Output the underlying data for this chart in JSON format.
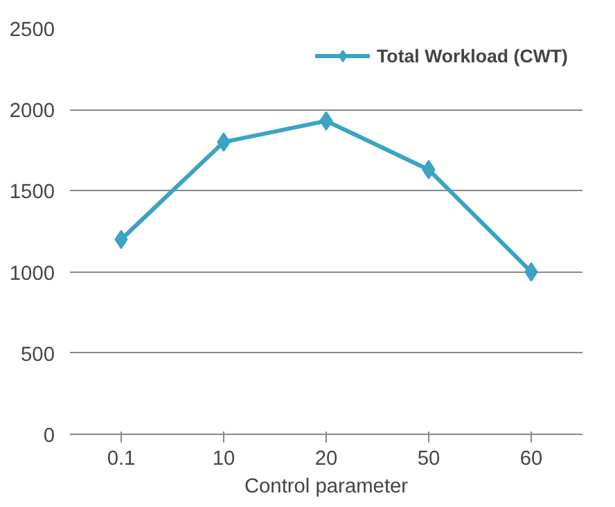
{
  "chart_data": {
    "type": "line",
    "xlabel": "Control parameter",
    "categories": [
      "0.1",
      "10",
      "20",
      "50",
      "60"
    ],
    "series": [
      {
        "name": "Total Workload (CWT)",
        "color": "#3ba3c3",
        "values": [
          1200,
          1800,
          1930,
          1630,
          1000
        ]
      }
    ],
    "ylim": [
      0,
      2500
    ],
    "yticks": [
      0,
      500,
      1000,
      1500,
      2000,
      2500
    ],
    "grid": "y",
    "legend": "top right",
    "marker": "diamond",
    "line_style": "solid"
  }
}
